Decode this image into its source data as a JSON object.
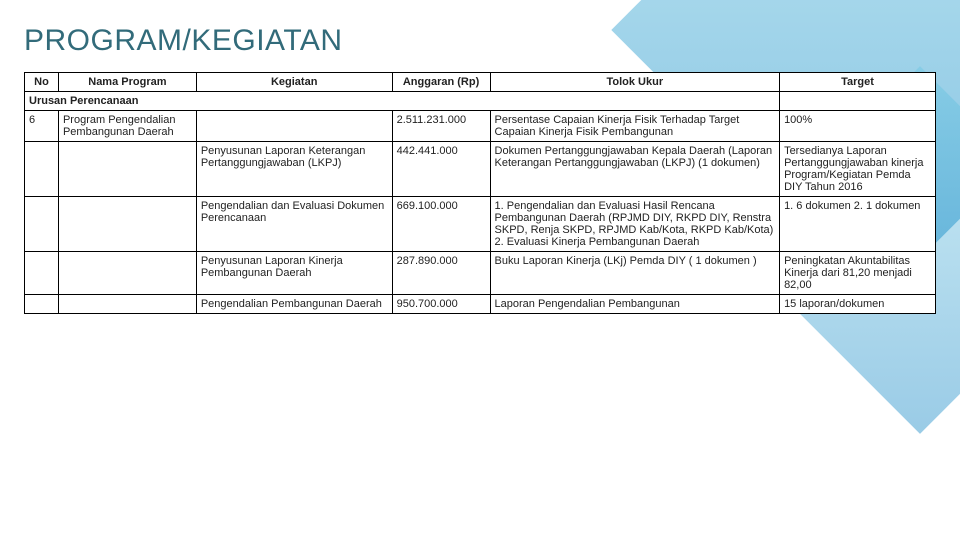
{
  "title": "PROGRAM/KEGIATAN",
  "table": {
    "headers": {
      "no": "No",
      "nama_program": "Nama Program",
      "kegiatan": "Kegiatan",
      "anggaran": "Anggaran (Rp)",
      "tolok_ukur": "Tolok Ukur",
      "target": "Target"
    },
    "section_label": "Urusan Perencanaan",
    "rows": [
      {
        "no": "6",
        "nama_program": "Program Pengendalian Pembangunan Daerah",
        "kegiatan": "",
        "anggaran": "2.511.231.000",
        "tolok_ukur": "Persentase Capaian Kinerja Fisik Terhadap Target Capaian Kinerja Fisik Pembangunan",
        "target": "100%"
      },
      {
        "no": "",
        "nama_program": "",
        "kegiatan": "Penyusunan Laporan Keterangan Pertanggungjawaban (LKPJ)",
        "anggaran": "442.441.000",
        "tolok_ukur": "Dokumen Pertanggungjawaban Kepala Daerah (Laporan Keterangan Pertanggungjawaban (LKPJ) (1 dokumen)",
        "target": "Tersedianya Laporan Pertanggungjawaban kinerja Program/Kegiatan Pemda DIY Tahun 2016"
      },
      {
        "no": "",
        "nama_program": "",
        "kegiatan": "Pengendalian dan Evaluasi Dokumen Perencanaan",
        "anggaran": "669.100.000",
        "tolok_ukur": "1. Pengendalian dan Evaluasi Hasil Rencana Pembangunan Daerah (RPJMD DIY, RKPD DIY, Renstra SKPD, Renja SKPD, RPJMD Kab/Kota, RKPD Kab/Kota)\n2. Evaluasi Kinerja Pembangunan Daerah",
        "target": "1. 6 dokumen\n2. 1 dokumen"
      },
      {
        "no": "",
        "nama_program": "",
        "kegiatan": "Penyusunan Laporan Kinerja Pembangunan Daerah",
        "anggaran": "287.890.000",
        "tolok_ukur": "Buku Laporan Kinerja (LKj) Pemda DIY ( 1 dokumen )",
        "target": "Peningkatan Akuntabilitas Kinerja dari 81,20 menjadi 82,00"
      },
      {
        "no": "",
        "nama_program": "",
        "kegiatan": "Pengendalian Pembangunan Daerah",
        "anggaran": "950.700.000",
        "tolok_ukur": "Laporan Pengendalian Pembangunan",
        "target": "15 laporan/dokumen"
      }
    ],
    "colors": {
      "title_color": "#326b7a",
      "border_color": "#000000",
      "bg_color": "#ffffff",
      "accent_gradient_from": "#5fc5dc",
      "accent_gradient_to": "#1e8cc8"
    }
  }
}
